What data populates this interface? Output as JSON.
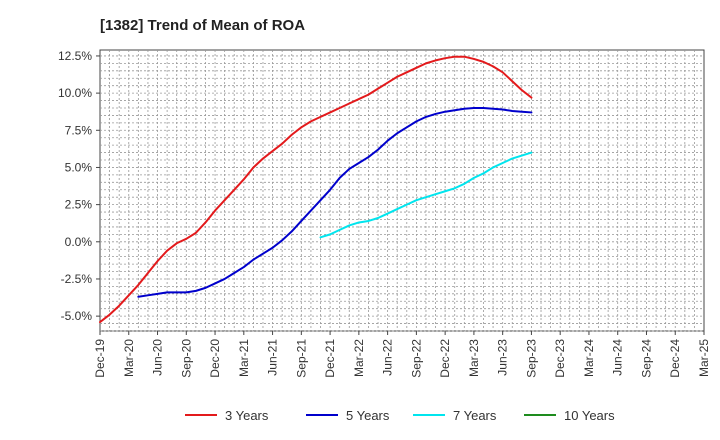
{
  "chart_data": {
    "type": "line",
    "title": "[1382]  Trend of Mean of ROA",
    "xlabel": "",
    "ylabel": "",
    "x_tick_labels": [
      "Dec-19",
      "Mar-20",
      "Jun-20",
      "Sep-20",
      "Dec-20",
      "Mar-21",
      "Jun-21",
      "Sep-21",
      "Dec-21",
      "Mar-22",
      "Jun-22",
      "Sep-22",
      "Dec-22",
      "Mar-23",
      "Jun-23",
      "Sep-23",
      "Dec-23",
      "Mar-24",
      "Jun-24",
      "Sep-24",
      "Dec-24",
      "Mar-25"
    ],
    "y_tick_labels": [
      "12.5%",
      "10.0%",
      "7.5%",
      "5.0%",
      "2.5%",
      "0.0%",
      "-2.5%",
      "-5.0%"
    ],
    "y_ticks": [
      12.5,
      10.0,
      7.5,
      5.0,
      2.5,
      0.0,
      -2.5,
      -5.0
    ],
    "ylim": [
      -6.0,
      12.9
    ],
    "grid": true,
    "legend_position": "bottom",
    "series": [
      {
        "name": "3 Years",
        "color": "#e31a1c",
        "values": [
          -5.4,
          -4.9,
          -4.3,
          -3.6,
          -2.9,
          -2.1,
          -1.3,
          -0.6,
          -0.1,
          0.2,
          0.6,
          1.3,
          2.1,
          2.8,
          3.5,
          4.2,
          5.0,
          5.6,
          6.1,
          6.6,
          7.2,
          7.7,
          8.1,
          8.4,
          8.7,
          9.0,
          9.3,
          9.6,
          9.9,
          10.3,
          10.7,
          11.1,
          11.4,
          11.7,
          12.0,
          12.2,
          12.35,
          12.45,
          12.45,
          12.3,
          12.1,
          11.8,
          11.4,
          10.8,
          10.2,
          9.7
        ]
      },
      {
        "name": "5 Years",
        "color": "#0000cc",
        "values": [
          null,
          null,
          null,
          null,
          -3.7,
          -3.6,
          -3.5,
          -3.4,
          -3.4,
          -3.4,
          -3.3,
          -3.1,
          -2.8,
          -2.5,
          -2.1,
          -1.7,
          -1.2,
          -0.8,
          -0.4,
          0.1,
          0.7,
          1.4,
          2.1,
          2.8,
          3.5,
          4.3,
          4.9,
          5.3,
          5.7,
          6.2,
          6.8,
          7.3,
          7.7,
          8.1,
          8.4,
          8.6,
          8.75,
          8.85,
          8.95,
          9.0,
          9.0,
          8.95,
          8.9,
          8.8,
          8.75,
          8.7
        ]
      },
      {
        "name": "7 Years",
        "color": "#00e5ee",
        "values": [
          null,
          null,
          null,
          null,
          null,
          null,
          null,
          null,
          null,
          null,
          null,
          null,
          null,
          null,
          null,
          null,
          null,
          null,
          null,
          null,
          null,
          null,
          null,
          0.3,
          0.5,
          0.8,
          1.1,
          1.3,
          1.4,
          1.6,
          1.9,
          2.2,
          2.5,
          2.8,
          3.0,
          3.2,
          3.4,
          3.6,
          3.9,
          4.3,
          4.6,
          5.0,
          5.3,
          5.6,
          5.8,
          6.0
        ]
      },
      {
        "name": "10 Years",
        "color": "#1e8c1e",
        "values": []
      }
    ]
  }
}
